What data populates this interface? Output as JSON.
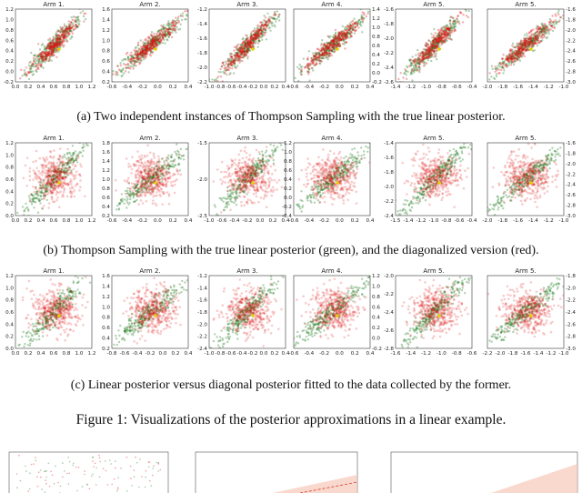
{
  "figure": {
    "rows": [
      {
        "caption": "(a) Two independent instances of Thompson Sampling with the true linear posterior.",
        "style": "overlap",
        "panels": [
          {
            "title": "Arm 1.",
            "yaxis": "left",
            "xticks": [
              "0.0",
              "0.2",
              "0.4",
              "0.6",
              "0.8",
              "1.0",
              "1.2"
            ],
            "yticks": [
              "1.2",
              "1.0",
              "0.8",
              "0.6",
              "0.4",
              "0.2",
              "0.0",
              "-0.2"
            ]
          },
          {
            "title": "Arm 2.",
            "yaxis": "left",
            "xticks": [
              "-0.6",
              "-0.4",
              "-0.2",
              "0.0",
              "0.2",
              "0.4"
            ],
            "yticks": [
              "1.6",
              "1.4",
              "1.2",
              "1.0",
              "0.8",
              "0.6",
              "0.4",
              "0.2"
            ]
          },
          {
            "title": "Arm 3.",
            "yaxis": "left",
            "xticks": [
              "-1.0",
              "-0.8",
              "-0.6",
              "-0.4",
              "-0.2",
              "0.0",
              "0.2",
              "0.4"
            ],
            "yticks": [
              "-1.2",
              "-1.4",
              "-1.6",
              "-1.8",
              "-2.0",
              "-2.2"
            ]
          },
          {
            "title": "Arm 4.",
            "yaxis": "right",
            "xticks": [
              "-0.6",
              "-0.4",
              "-0.2",
              "0.0",
              "0.2",
              "0.4"
            ],
            "yticks": [
              "1.4",
              "1.2",
              "1.0",
              "0.8",
              "0.6",
              "0.4",
              "0.2",
              "0.0",
              "-0.2"
            ]
          },
          {
            "title": "Arm 5.",
            "yaxis": "left",
            "xticks": [
              "-1.4",
              "-1.2",
              "-1.0",
              "-0.8",
              "-0.6",
              "-0.4"
            ],
            "yticks": [
              "-1.6",
              "-1.8",
              "-2.0",
              "-2.2",
              "-2.4",
              "-2.6"
            ]
          },
          {
            "title": "Arm 5.",
            "yaxis": "right",
            "xticks": [
              "-2.0",
              "-1.8",
              "-1.6",
              "-1.4",
              "-1.2",
              "-1.0"
            ],
            "yticks": [
              "-1.6",
              "-1.8",
              "-2.0",
              "-2.2",
              "-2.4",
              "-2.6",
              "-2.8",
              "-3.0"
            ]
          }
        ]
      },
      {
        "caption": "(b) Thompson Sampling with the true linear posterior (green), and the diagonalized version (red).",
        "style": "round",
        "panels": [
          {
            "title": "Arm 1.",
            "yaxis": "left",
            "xticks": [
              "0.0",
              "0.2",
              "0.4",
              "0.6",
              "0.8",
              "1.0",
              "1.2"
            ],
            "yticks": [
              "1.2",
              "1.0",
              "0.8",
              "0.6",
              "0.4",
              "0.2",
              "0.0"
            ]
          },
          {
            "title": "Arm 2.",
            "yaxis": "left",
            "xticks": [
              "-0.6",
              "-0.4",
              "-0.2",
              "0.0",
              "0.2",
              "0.4"
            ],
            "yticks": [
              "1.8",
              "1.6",
              "1.4",
              "1.2",
              "1.0",
              "0.8",
              "0.6",
              "0.4",
              "0.2"
            ]
          },
          {
            "title": "Arm 3.",
            "yaxis": "left",
            "xticks": [
              "-1.0",
              "-0.6",
              "-0.4",
              "-0.2",
              "0.0",
              "0.2",
              "0.4"
            ],
            "yticks": [
              "-1.5",
              "-2.0",
              "-2.5"
            ]
          },
          {
            "title": "Arm 4.",
            "yaxis": "left",
            "xticks": [
              "-0.6",
              "-0.4",
              "-0.2",
              "0.0",
              "0.2",
              "0.4"
            ],
            "yticks": [
              "1.2",
              "1.0",
              "0.8",
              "0.6",
              "0.4",
              "0.2",
              "0.0",
              "-0.2",
              "-0.4"
            ]
          },
          {
            "title": "Arm 5.",
            "yaxis": "left",
            "xticks": [
              "-1.5",
              "-1.4",
              "-1.2",
              "-1.0",
              "-0.8",
              "-0.6",
              "-0.4"
            ],
            "yticks": [
              "-1.4",
              "-1.6",
              "-1.8",
              "-2.0",
              "-2.2",
              "-2.4"
            ]
          },
          {
            "title": "Arm 5.",
            "yaxis": "right",
            "xticks": [
              "-2.0",
              "-1.8",
              "-1.6",
              "-1.4",
              "-1.2",
              "-1.0"
            ],
            "yticks": [
              "-1.6",
              "-1.8",
              "-2.0",
              "-2.2",
              "-2.4",
              "-2.6",
              "-2.8",
              "-3.0"
            ]
          }
        ]
      },
      {
        "caption": "(c) Linear posterior versus diagonal posterior fitted to the data collected by the former.",
        "style": "round",
        "panels": [
          {
            "title": "Arm 1.",
            "yaxis": "left",
            "xticks": [
              "0.0",
              "0.2",
              "0.4",
              "0.6",
              "0.8",
              "1.0",
              "1.2"
            ],
            "yticks": [
              "1.2",
              "1.0",
              "0.8",
              "0.6",
              "0.4",
              "0.2",
              "0.0"
            ]
          },
          {
            "title": "Arm 2.",
            "yaxis": "left",
            "xticks": [
              "-0.8",
              "-0.6",
              "-0.4",
              "-0.2",
              "0.0",
              "0.2",
              "0.4"
            ],
            "yticks": [
              "1.6",
              "1.4",
              "1.2",
              "1.0",
              "0.8",
              "0.6",
              "0.4",
              "0.2"
            ]
          },
          {
            "title": "Arm 3.",
            "yaxis": "left",
            "xticks": [
              "-1.0",
              "-0.8",
              "-0.6",
              "-0.4",
              "-0.2",
              "0.0",
              "0.2",
              "0.4"
            ],
            "yticks": [
              "-1.2",
              "-1.4",
              "-1.6",
              "-1.8",
              "-2.0",
              "-2.2",
              "-2.4"
            ]
          },
          {
            "title": "Arm 4.",
            "yaxis": "right",
            "xticks": [
              "-0.6",
              "-0.4",
              "-0.2",
              "0.0",
              "0.2",
              "0.4"
            ],
            "yticks": [
              "1.2",
              "1.0",
              "0.8",
              "0.6",
              "0.4",
              "0.2",
              "0.0",
              "-0.2"
            ]
          },
          {
            "title": "Arm 5.",
            "yaxis": "left",
            "xticks": [
              "-1.6",
              "-1.4",
              "-1.2",
              "-1.0",
              "-0.8",
              "-0.6"
            ],
            "yticks": [
              "-2.0",
              "-2.2",
              "-2.4",
              "-2.6",
              "-2.8"
            ]
          },
          {
            "title": "Arm 5.",
            "yaxis": "right",
            "xticks": [
              "-2.2",
              "-2.0",
              "-1.8",
              "-1.6",
              "-1.4",
              "-1.2",
              "-1.0"
            ],
            "yticks": [
              "-1.8",
              "-2.0",
              "-2.2",
              "-2.4",
              "-2.6",
              "-2.8",
              "-3.0"
            ]
          }
        ]
      }
    ],
    "figure_caption": "Figure 1: Visualizations of the posterior approximations in a linear example.",
    "colors": {
      "green": "#1f7a1f",
      "red": "#e01010",
      "yellow": "#e6d000",
      "band": "#f6c8b8"
    }
  }
}
